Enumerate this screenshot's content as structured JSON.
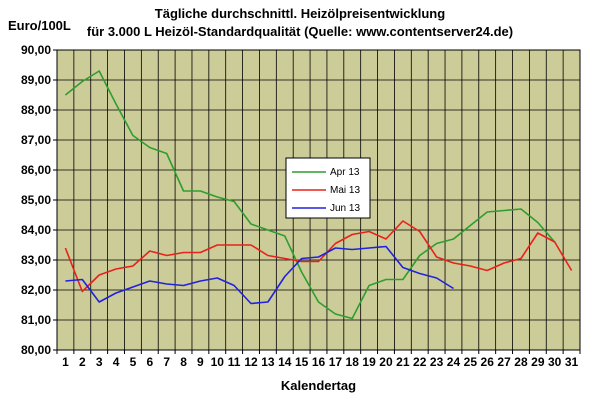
{
  "chart_data": {
    "type": "line",
    "title": "Tägliche durchschnittl. Heizölpreisentwicklung",
    "subtitle": "für 3.000 L Heizöl-Standardqualität (Quelle: www.contentserver24.de)",
    "ylabel": "Euro/100L",
    "xlabel": "Kalendertag",
    "ylim": [
      80,
      90
    ],
    "y_ticks": [
      "80,00",
      "81,00",
      "82,00",
      "83,00",
      "84,00",
      "85,00",
      "86,00",
      "87,00",
      "88,00",
      "89,00",
      "90,00"
    ],
    "x": [
      1,
      2,
      3,
      4,
      5,
      6,
      7,
      8,
      9,
      10,
      11,
      12,
      13,
      14,
      15,
      16,
      17,
      18,
      19,
      20,
      21,
      22,
      23,
      24,
      25,
      26,
      27,
      28,
      29,
      30,
      31
    ],
    "x_ticks": [
      "1",
      "2",
      "3",
      "4",
      "5",
      "6",
      "7",
      "8",
      "9",
      "10",
      "11",
      "12",
      "13",
      "14",
      "15",
      "16",
      "17",
      "18",
      "19",
      "20",
      "21",
      "22",
      "23",
      "24",
      "25",
      "26",
      "27",
      "28",
      "29",
      "30",
      "31"
    ],
    "grid": true,
    "legend_position": "center",
    "series": [
      {
        "name": "Apr 13",
        "color": "#2e9e2e",
        "values": [
          88.5,
          88.95,
          89.3,
          88.2,
          87.15,
          86.75,
          86.55,
          85.3,
          85.3,
          85.1,
          84.95,
          84.2,
          84.0,
          83.8,
          82.6,
          81.6,
          81.2,
          81.05,
          82.15,
          82.35,
          82.35,
          83.15,
          83.55,
          83.7,
          84.15,
          84.6,
          84.65,
          84.7,
          84.25,
          83.6,
          null
        ]
      },
      {
        "name": "Mai 13",
        "color": "#e8221b",
        "values": [
          83.4,
          81.95,
          82.5,
          82.7,
          82.8,
          83.3,
          83.15,
          83.25,
          83.25,
          83.5,
          83.5,
          83.5,
          83.15,
          83.05,
          82.95,
          82.95,
          83.55,
          83.85,
          83.95,
          83.7,
          84.3,
          83.95,
          83.1,
          82.9,
          82.8,
          82.65,
          82.9,
          83.05,
          83.9,
          83.6,
          82.65
        ]
      },
      {
        "name": "Jun 13",
        "color": "#2222dd",
        "values": [
          82.3,
          82.35,
          81.6,
          81.9,
          82.1,
          82.3,
          82.2,
          82.15,
          82.3,
          82.4,
          82.15,
          81.55,
          81.6,
          82.45,
          83.05,
          83.1,
          83.4,
          83.35,
          83.4,
          83.45,
          82.75,
          82.55,
          82.4,
          82.05,
          null,
          null,
          null,
          null,
          null,
          null,
          null
        ]
      }
    ]
  }
}
